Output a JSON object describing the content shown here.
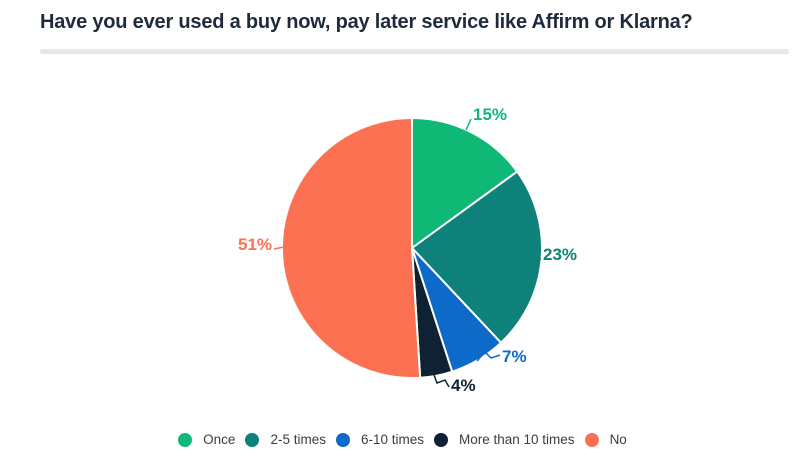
{
  "header": {
    "title": "Have you ever used a buy now, pay later service like Affirm or Klarna?"
  },
  "chart_data": {
    "type": "pie",
    "title": "Have you ever used a buy now, pay later service like Affirm or Klarna?",
    "categories": [
      "Once",
      "2-5 times",
      "6-10 times",
      "More than 10 times",
      "No"
    ],
    "values": [
      15,
      23,
      7,
      4,
      51
    ],
    "display_labels": [
      "15%",
      "23%",
      "7%",
      "4%",
      "51%"
    ],
    "colors": [
      "#10b876",
      "#0e827a",
      "#0e6ac8",
      "#0e2233",
      "#fc7152"
    ],
    "start_angle_deg": 0,
    "direction": "clockwise",
    "slice_border_color": "#ffffff",
    "legend_position": "bottom",
    "label_position": "outside"
  }
}
